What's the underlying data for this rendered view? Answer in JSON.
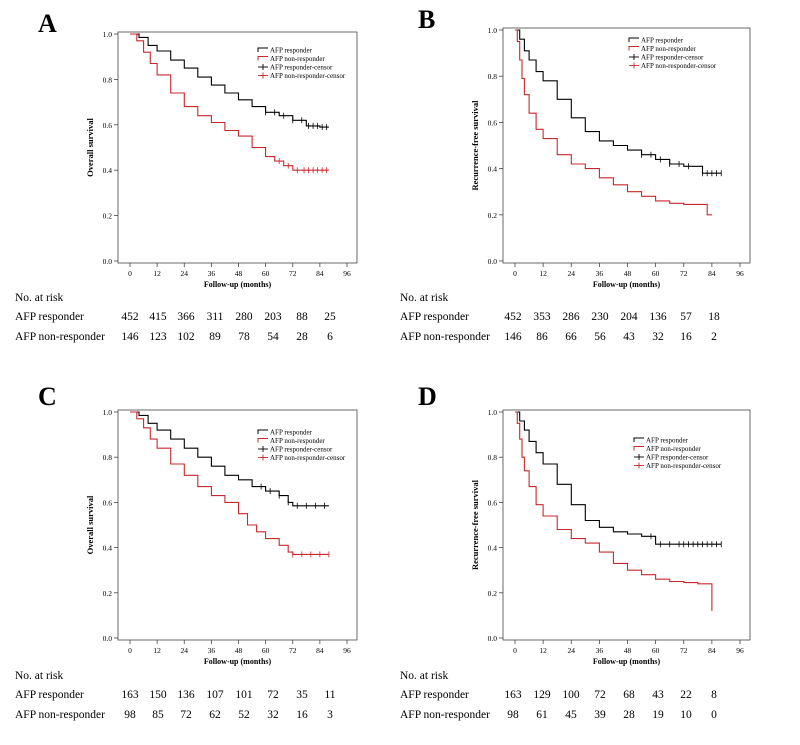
{
  "chart_data": [
    {
      "type": "line",
      "panel_label": "A",
      "ylabel": "Overall survival",
      "xlabel": "Follow-up (months)",
      "xlim": [
        0,
        96
      ],
      "ylim": [
        0,
        1.0
      ],
      "xticks": [
        "0",
        "12",
        "24",
        "36",
        "48",
        "60",
        "72",
        "84",
        "96"
      ],
      "yticks": [
        "0.0",
        "0.2",
        "0.4",
        "0.6",
        "0.8",
        "1.0"
      ],
      "legend": [
        "AFP responder",
        "AFP non-responder",
        "AFP responder-censor",
        "AFP non-responder-censor"
      ],
      "series": [
        {
          "name": "AFP responder",
          "color": "#000000",
          "x": [
            0,
            4,
            8,
            12,
            18,
            24,
            30,
            36,
            42,
            48,
            54,
            60,
            66,
            72,
            78,
            84,
            88
          ],
          "y": [
            1.0,
            0.985,
            0.95,
            0.925,
            0.885,
            0.85,
            0.81,
            0.775,
            0.74,
            0.71,
            0.68,
            0.655,
            0.64,
            0.62,
            0.595,
            0.59,
            0.59
          ]
        },
        {
          "name": "AFP non-responder",
          "color": "#c8282d",
          "x": [
            0,
            3,
            6,
            9,
            12,
            18,
            24,
            30,
            36,
            42,
            48,
            54,
            60,
            64,
            68,
            72,
            78,
            84,
            88
          ],
          "y": [
            1.0,
            0.97,
            0.92,
            0.87,
            0.82,
            0.74,
            0.68,
            0.64,
            0.61,
            0.575,
            0.55,
            0.5,
            0.46,
            0.44,
            0.42,
            0.4,
            0.4,
            0.4,
            0.4
          ]
        }
      ],
      "censor": {
        "responder": [
          60,
          64,
          68,
          72,
          76,
          79,
          81,
          83,
          85,
          87
        ],
        "non_responder": [
          66,
          70,
          74,
          77,
          79,
          81,
          83,
          85,
          87
        ]
      },
      "risk_table": {
        "header": "No. at risk",
        "rows": [
          {
            "label": "AFP responder",
            "values": [
              "452",
              "415",
              "366",
              "311",
              "280",
              "203",
              "88",
              "25"
            ]
          },
          {
            "label": "AFP non-responder",
            "values": [
              "146",
              "123",
              "102",
              "89",
              "78",
              "54",
              "28",
              "6"
            ]
          }
        ]
      }
    },
    {
      "type": "line",
      "panel_label": "B",
      "ylabel": "Recurrence-free survival",
      "xlabel": "Follow-up (months)",
      "xlim": [
        0,
        96
      ],
      "ylim": [
        0,
        1.0
      ],
      "xticks": [
        "0",
        "12",
        "24",
        "36",
        "48",
        "60",
        "72",
        "84",
        "96"
      ],
      "yticks": [
        "0.0",
        "0.2",
        "0.4",
        "0.6",
        "0.8",
        "1.0"
      ],
      "legend": [
        "AFP responder",
        "AFP non-responder",
        "AFP responder-censor",
        "AFP non-responder-censor"
      ],
      "series": [
        {
          "name": "AFP responder",
          "color": "#000000",
          "x": [
            0,
            2,
            4,
            6,
            9,
            12,
            18,
            24,
            30,
            36,
            42,
            48,
            54,
            60,
            66,
            72,
            78,
            80,
            84,
            88
          ],
          "y": [
            1.0,
            0.96,
            0.91,
            0.87,
            0.82,
            0.78,
            0.7,
            0.62,
            0.56,
            0.52,
            0.5,
            0.48,
            0.46,
            0.44,
            0.42,
            0.41,
            0.41,
            0.38,
            0.38,
            0.38
          ]
        },
        {
          "name": "AFP non-responder",
          "color": "#c8282d",
          "x": [
            0,
            1,
            2,
            3,
            4,
            6,
            9,
            12,
            18,
            24,
            30,
            36,
            42,
            48,
            54,
            60,
            66,
            72,
            78,
            82,
            84
          ],
          "y": [
            1.0,
            0.95,
            0.87,
            0.79,
            0.72,
            0.64,
            0.57,
            0.53,
            0.46,
            0.42,
            0.4,
            0.36,
            0.33,
            0.3,
            0.28,
            0.26,
            0.25,
            0.245,
            0.245,
            0.2,
            0.2
          ]
        }
      ],
      "censor": {
        "responder": [
          54,
          58,
          62,
          66,
          70,
          74,
          80,
          82,
          84,
          86,
          88
        ],
        "non_responder": []
      },
      "risk_table": {
        "header": "No. at risk",
        "rows": [
          {
            "label": "AFP responder",
            "values": [
              "452",
              "353",
              "286",
              "230",
              "204",
              "136",
              "57",
              "18"
            ]
          },
          {
            "label": "AFP non-responder",
            "values": [
              "146",
              "86",
              "66",
              "56",
              "43",
              "32",
              "16",
              "2"
            ]
          }
        ]
      }
    },
    {
      "type": "line",
      "panel_label": "C",
      "ylabel": "Overall survival",
      "xlabel": "Follow-up (months)",
      "xlim": [
        0,
        96
      ],
      "ylim": [
        0,
        1.0
      ],
      "xticks": [
        "0",
        "12",
        "24",
        "36",
        "48",
        "60",
        "72",
        "84",
        "96"
      ],
      "yticks": [
        "0.0",
        "0.2",
        "0.4",
        "0.6",
        "0.8",
        "1.0"
      ],
      "legend": [
        "AFP responder",
        "AFP non-responder",
        "AFP responder-censor",
        "AFP non-responder-censor"
      ],
      "series": [
        {
          "name": "AFP responder",
          "color": "#000000",
          "x": [
            0,
            4,
            8,
            12,
            18,
            24,
            30,
            36,
            42,
            48,
            54,
            60,
            66,
            70,
            72,
            78,
            84,
            88
          ],
          "y": [
            1.0,
            0.985,
            0.95,
            0.92,
            0.88,
            0.84,
            0.8,
            0.76,
            0.72,
            0.7,
            0.67,
            0.65,
            0.63,
            0.6,
            0.585,
            0.585,
            0.585,
            0.585
          ]
        },
        {
          "name": "AFP non-responder",
          "color": "#c8282d",
          "x": [
            0,
            3,
            6,
            9,
            12,
            18,
            24,
            30,
            36,
            42,
            48,
            52,
            56,
            60,
            66,
            70,
            72,
            78,
            84,
            88
          ],
          "y": [
            1.0,
            0.97,
            0.93,
            0.88,
            0.84,
            0.77,
            0.72,
            0.67,
            0.63,
            0.6,
            0.55,
            0.5,
            0.47,
            0.44,
            0.41,
            0.38,
            0.37,
            0.37,
            0.37,
            0.37
          ]
        }
      ],
      "censor": {
        "responder": [
          58,
          62,
          66,
          70,
          74,
          78,
          82,
          86
        ],
        "non_responder": [
          72,
          76,
          80,
          84,
          88
        ]
      },
      "risk_table": {
        "header": "No. at risk",
        "rows": [
          {
            "label": "AFP responder",
            "values": [
              "163",
              "150",
              "136",
              "107",
              "101",
              "72",
              "35",
              "11"
            ]
          },
          {
            "label": "AFP non-responder",
            "values": [
              "98",
              "85",
              "72",
              "62",
              "52",
              "32",
              "16",
              "3"
            ]
          }
        ]
      }
    },
    {
      "type": "line",
      "panel_label": "D",
      "ylabel": "Recurrence-free survival",
      "xlabel": "Follow-up (months)",
      "xlim": [
        0,
        96
      ],
      "ylim": [
        0,
        1.0
      ],
      "xticks": [
        "0",
        "12",
        "24",
        "36",
        "48",
        "60",
        "72",
        "84",
        "96"
      ],
      "yticks": [
        "0.0",
        "0.2",
        "0.4",
        "0.6",
        "0.8",
        "1.0"
      ],
      "legend": [
        "AFP responder",
        "AFP non-responder",
        "AFP responder-censor",
        "AFP non-responder-censor"
      ],
      "series": [
        {
          "name": "AFP responder",
          "color": "#000000",
          "x": [
            0,
            2,
            4,
            6,
            9,
            12,
            18,
            24,
            30,
            36,
            42,
            48,
            54,
            60,
            66,
            72,
            78,
            84,
            88
          ],
          "y": [
            1.0,
            0.96,
            0.92,
            0.87,
            0.82,
            0.77,
            0.68,
            0.59,
            0.52,
            0.49,
            0.47,
            0.46,
            0.45,
            0.415,
            0.415,
            0.415,
            0.415,
            0.415,
            0.415
          ]
        },
        {
          "name": "AFP non-responder",
          "color": "#c8282d",
          "x": [
            0,
            1,
            2,
            3,
            4,
            6,
            9,
            12,
            18,
            24,
            30,
            36,
            42,
            48,
            54,
            60,
            66,
            72,
            78,
            84,
            84.01
          ],
          "y": [
            1.0,
            0.95,
            0.88,
            0.8,
            0.74,
            0.67,
            0.59,
            0.54,
            0.48,
            0.44,
            0.42,
            0.38,
            0.33,
            0.3,
            0.28,
            0.26,
            0.25,
            0.245,
            0.24,
            0.24,
            0.12
          ]
        }
      ],
      "censor": {
        "responder": [
          58,
          62,
          66,
          70,
          72,
          74,
          76,
          78,
          80,
          82,
          84,
          86,
          88
        ],
        "non_responder": []
      },
      "risk_table": {
        "header": "No. at risk",
        "rows": [
          {
            "label": "AFP responder",
            "values": [
              "163",
              "129",
              "100",
              "72",
              "68",
              "43",
              "22",
              "8"
            ]
          },
          {
            "label": "AFP non-responder",
            "values": [
              "98",
              "61",
              "45",
              "39",
              "28",
              "19",
              "10",
              "0"
            ]
          }
        ]
      }
    }
  ]
}
